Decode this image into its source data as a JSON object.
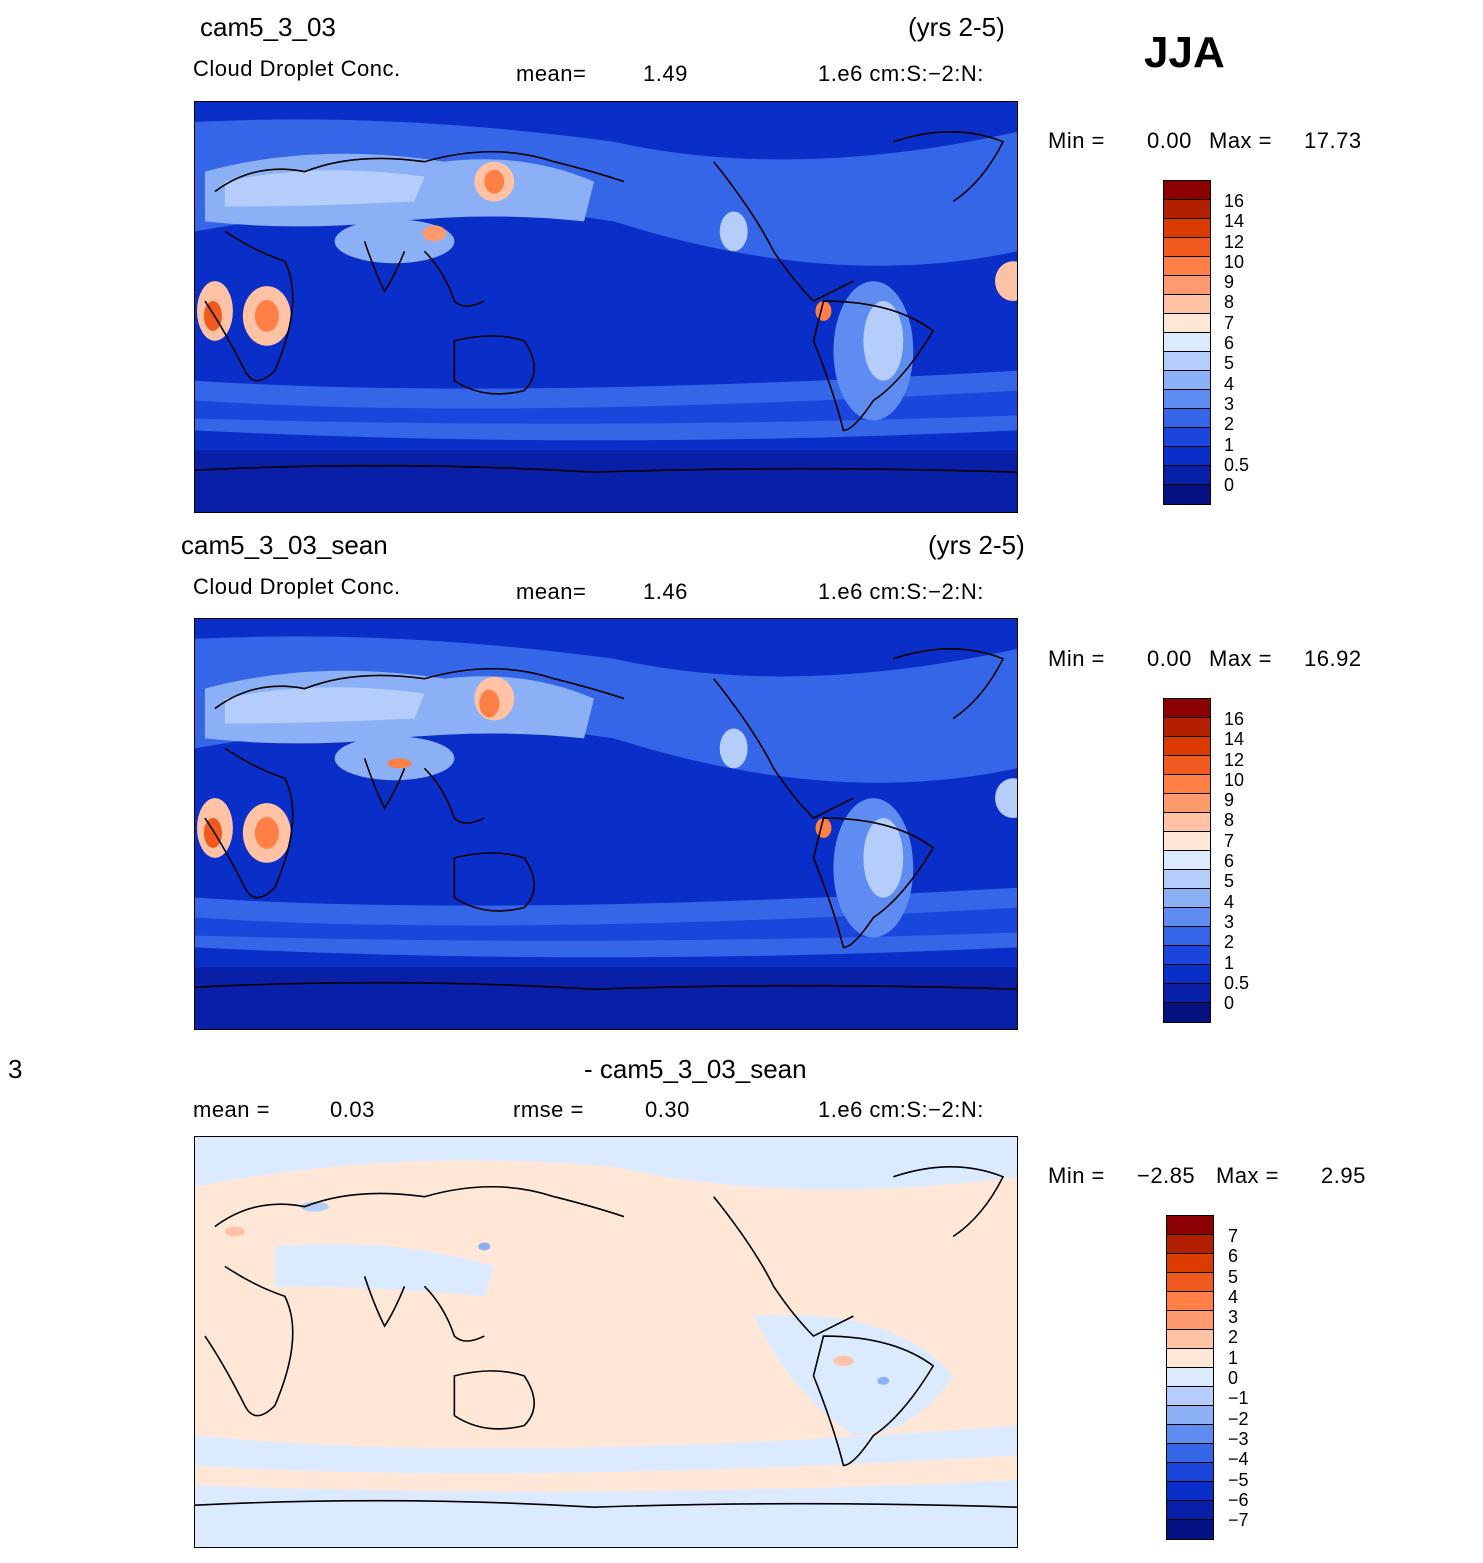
{
  "season": "JJA",
  "panels": [
    {
      "case": "cam5_3_03",
      "years": "(yrs 2-5)",
      "variable": "Cloud Droplet Conc.",
      "mean_label": "mean=",
      "mean_value": "1.49",
      "units": "1.e6 cm:S:−2:N:",
      "min_label": "Min =",
      "min_value": "0.00",
      "max_label": "Max =",
      "max_value": "17.73",
      "colorbar": {
        "colors": [
          "#8b0000",
          "#b22000",
          "#dc3b00",
          "#f05a1e",
          "#ff7f46",
          "#ff9a6e",
          "#ffc2a5",
          "#ffe7d8",
          "#dceaff",
          "#b4cdfa",
          "#8cb0f5",
          "#5f8cf0",
          "#3566e8",
          "#1a46dc",
          "#0a2ec8",
          "#0820a8",
          "#061282"
        ],
        "ticks": [
          "16",
          "14",
          "12",
          "10",
          "9",
          "8",
          "7",
          "6",
          "5",
          "4",
          "3",
          "2",
          "1",
          "0.5",
          "0"
        ]
      }
    },
    {
      "case": "cam5_3_03_sean",
      "years": "(yrs 2-5)",
      "variable": "Cloud Droplet Conc.",
      "mean_label": "mean=",
      "mean_value": "1.46",
      "units": "1.e6 cm:S:−2:N:",
      "min_label": "Min =",
      "min_value": "0.00",
      "max_label": "Max =",
      "max_value": "16.92",
      "colorbar": {
        "colors": [
          "#8b0000",
          "#b22000",
          "#dc3b00",
          "#f05a1e",
          "#ff7f46",
          "#ff9a6e",
          "#ffc2a5",
          "#ffe7d8",
          "#dceaff",
          "#b4cdfa",
          "#8cb0f5",
          "#5f8cf0",
          "#3566e8",
          "#1a46dc",
          "#0a2ec8",
          "#0820a8",
          "#061282"
        ],
        "ticks": [
          "16",
          "14",
          "12",
          "10",
          "9",
          "8",
          "7",
          "6",
          "5",
          "4",
          "3",
          "2",
          "1",
          "0.5",
          "0"
        ]
      }
    },
    {
      "case_left": "3",
      "case": "- cam5_3_03_sean",
      "mean_label": "mean =",
      "mean_value": "0.03",
      "rmse_label": "rmse =",
      "rmse_value": "0.30",
      "units": "1.e6 cm:S:−2:N:",
      "min_label": "Min =",
      "min_value": "−2.85",
      "max_label": "Max =",
      "max_value": "2.95",
      "colorbar": {
        "colors": [
          "#8b0000",
          "#b22000",
          "#dc3b00",
          "#f05a1e",
          "#ff7f46",
          "#ff9a6e",
          "#ffc2a5",
          "#ffe7d8",
          "#dceaff",
          "#b4cdfa",
          "#8cb0f5",
          "#5f8cf0",
          "#3566e8",
          "#1a46dc",
          "#0a2ec8",
          "#0820a8",
          "#061282"
        ],
        "ticks": [
          "7",
          "6",
          "5",
          "4",
          "3",
          "2",
          "1",
          "0",
          "−1",
          "−2",
          "−3",
          "−4",
          "−5",
          "−6",
          "−7"
        ]
      }
    }
  ]
}
